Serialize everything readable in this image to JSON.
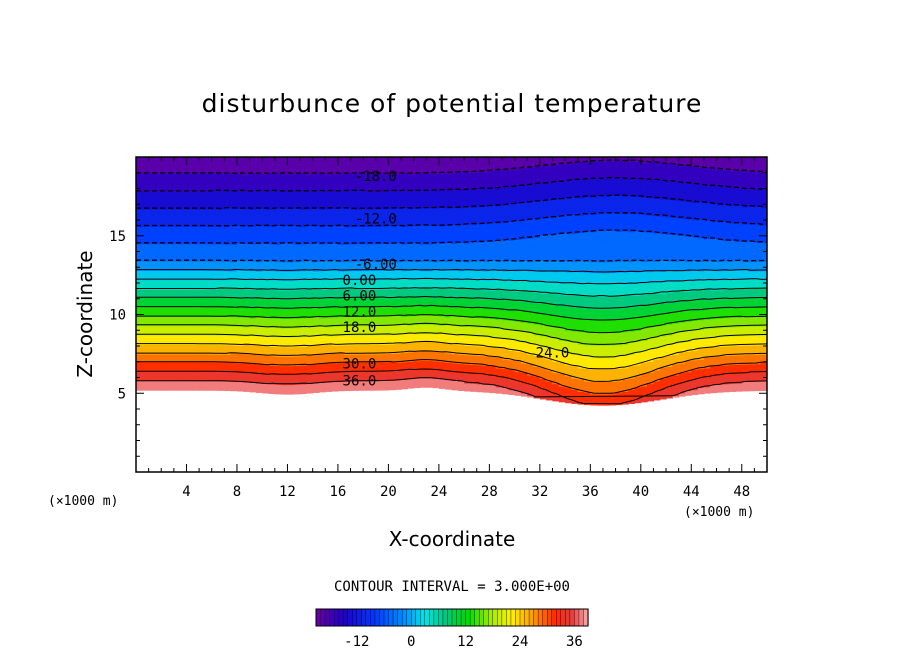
{
  "chart_data": {
    "type": "heatmap",
    "title": "disturbunce of potential temperature",
    "xlabel": "X-coordinate",
    "ylabel": "Z-coordinate",
    "x_units": "(×1000 m)",
    "y_units": "(×1000 m)",
    "xlim": [
      0,
      50
    ],
    "ylim": [
      0,
      20
    ],
    "x_ticks": [
      4,
      8,
      12,
      16,
      20,
      24,
      28,
      32,
      36,
      40,
      44,
      48
    ],
    "y_ticks": [
      5,
      10,
      15
    ],
    "contour_interval_label": "CONTOUR INTERVAL = 3.000E+00",
    "contour_interval": 3,
    "value_range": [
      -21,
      39
    ],
    "colorbar_ticks": [
      -12,
      0,
      12,
      24,
      36
    ],
    "contour_labels": [
      {
        "text": "-18.0",
        "x": 19.0,
        "y": 18.8
      },
      {
        "text": "-12.0",
        "x": 19.0,
        "y": 16.1
      },
      {
        "text": "-6.00",
        "x": 19.0,
        "y": 13.2
      },
      {
        "text": "0.00",
        "x": 17.7,
        "y": 12.2
      },
      {
        "text": "6.00",
        "x": 17.7,
        "y": 11.2
      },
      {
        "text": "12.0",
        "x": 17.7,
        "y": 10.2
      },
      {
        "text": "18.0",
        "x": 17.7,
        "y": 9.2
      },
      {
        "text": "30.0",
        "x": 17.7,
        "y": 6.9
      },
      {
        "text": "36.0",
        "x": 17.7,
        "y": 5.8
      },
      {
        "text": "24.0",
        "x": 33.0,
        "y": 7.6
      }
    ]
  }
}
